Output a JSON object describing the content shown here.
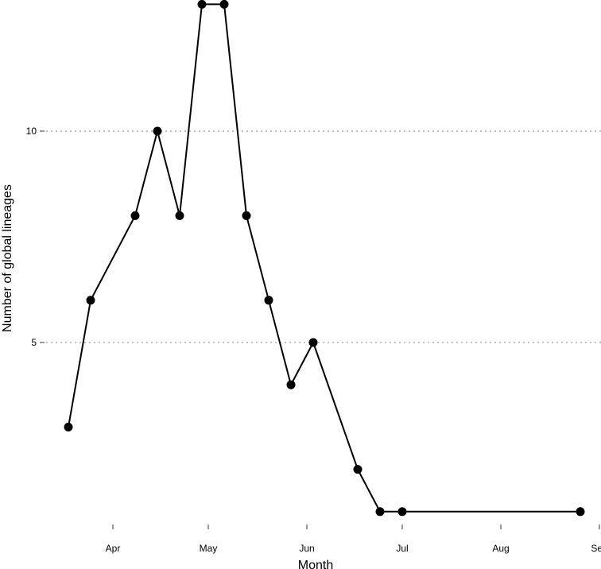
{
  "chart_data": {
    "type": "line",
    "title": "",
    "xlabel": "Month",
    "ylabel": "Number of global lineages",
    "x_tick_labels": [
      "Apr",
      "May",
      "Jun",
      "Jul",
      "Aug",
      "Sep"
    ],
    "x_tick_months": [
      4,
      5,
      6,
      7,
      8,
      9
    ],
    "y_ticks": [
      5,
      10
    ],
    "ylim": [
      0.8,
      13
    ],
    "grid": "horizontal dotted at y ticks",
    "legend": "none",
    "line_color": "#000000",
    "point_color": "#000000",
    "points": [
      {
        "date": "2020-03-18",
        "y": 3
      },
      {
        "date": "2020-03-25",
        "y": 6
      },
      {
        "date": "2020-04-08",
        "y": 8
      },
      {
        "date": "2020-04-15",
        "y": 10
      },
      {
        "date": "2020-04-22",
        "y": 8
      },
      {
        "date": "2020-04-29",
        "y": 13
      },
      {
        "date": "2020-05-06",
        "y": 13
      },
      {
        "date": "2020-05-13",
        "y": 8
      },
      {
        "date": "2020-05-20",
        "y": 6
      },
      {
        "date": "2020-05-27",
        "y": 4
      },
      {
        "date": "2020-06-03",
        "y": 5
      },
      {
        "date": "2020-06-17",
        "y": 2
      },
      {
        "date": "2020-06-24",
        "y": 1
      },
      {
        "date": "2020-07-01",
        "y": 1
      },
      {
        "date": "2020-08-26",
        "y": 1
      }
    ]
  }
}
